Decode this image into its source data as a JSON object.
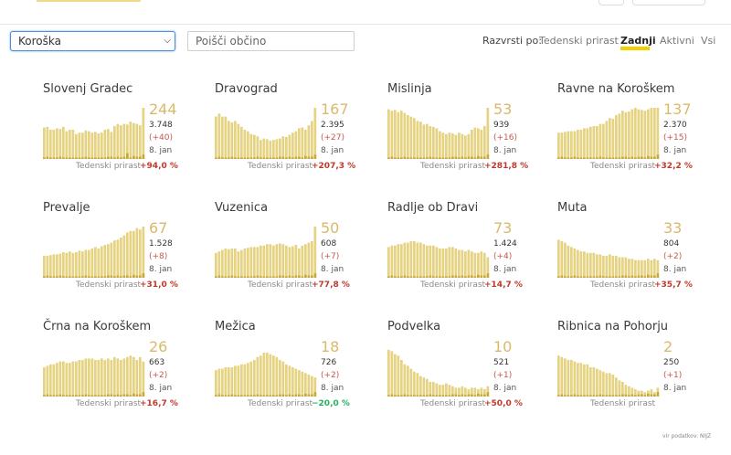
{
  "filters": {
    "region_selected": "Koroška",
    "search_placeholder": "Poišči občino"
  },
  "sort": {
    "label": "Razvrsti po:",
    "options": [
      "Tedenski prirast",
      "Zadnji",
      "Aktivni",
      "Vsi"
    ],
    "active": "Zadnji"
  },
  "colors": {
    "bar": "#e6d382",
    "bar_dark": "#c9a73a",
    "accent": "#d9b96a",
    "underline": "#f2d000",
    "increase": "#c0392b",
    "decrease": "#27ae60"
  },
  "weekly_label": "Tedenski prirast",
  "municipalities": [
    {
      "name": "Slovenj Gradec",
      "last": "244",
      "total": "3.748",
      "delta": "(+40)",
      "date": "8. jan",
      "weekly": "+94,0 %",
      "dir": "up",
      "bars": [
        43,
        44,
        40,
        40,
        42,
        41,
        44,
        38,
        40,
        40,
        34,
        36,
        36,
        39,
        38,
        36,
        37,
        35,
        36,
        40,
        41,
        37,
        45,
        48,
        46,
        48,
        47,
        51,
        49,
        48,
        46,
        70
      ],
      "dark": [
        2,
        3,
        2,
        2,
        2,
        3,
        2,
        2,
        2,
        2,
        2,
        2,
        2,
        3,
        2,
        2,
        2,
        2,
        2,
        2,
        3,
        3,
        2,
        3,
        2,
        3,
        8,
        2,
        4,
        3,
        3,
        6
      ]
    },
    {
      "name": "Dravograd",
      "last": "167",
      "total": "2.395",
      "delta": "(+27)",
      "date": "8. jan",
      "weekly": "+207,3 %",
      "dir": "up",
      "bars": [
        58,
        62,
        58,
        58,
        52,
        50,
        52,
        48,
        44,
        40,
        38,
        34,
        33,
        31,
        26,
        28,
        27,
        25,
        26,
        27,
        28,
        31,
        30,
        33,
        36,
        38,
        42,
        43,
        40,
        46,
        52,
        70
      ],
      "dark": [
        2,
        3,
        2,
        2,
        2,
        3,
        2,
        2,
        2,
        2,
        2,
        2,
        2,
        3,
        2,
        2,
        2,
        2,
        2,
        2,
        3,
        3,
        2,
        3,
        2,
        3,
        3,
        2,
        4,
        3,
        3,
        6
      ]
    },
    {
      "name": "Mislinja",
      "last": "53",
      "total": "939",
      "delta": "(+16)",
      "date": "8. jan",
      "weekly": "+281,8 %",
      "dir": "up",
      "bars": [
        68,
        66,
        67,
        64,
        66,
        63,
        60,
        58,
        56,
        52,
        51,
        47,
        48,
        45,
        44,
        42,
        38,
        36,
        34,
        36,
        35,
        33,
        36,
        34,
        32,
        34,
        40,
        43,
        42,
        40,
        45,
        70
      ],
      "dark": [
        2,
        3,
        2,
        2,
        2,
        3,
        2,
        2,
        2,
        2,
        2,
        2,
        2,
        3,
        2,
        2,
        2,
        2,
        2,
        2,
        3,
        3,
        2,
        3,
        2,
        3,
        3,
        2,
        4,
        3,
        3,
        6
      ]
    },
    {
      "name": "Ravne na Koroškem",
      "last": "137",
      "total": "2.370",
      "delta": "(+15)",
      "date": "8. jan",
      "weekly": "+32,2 %",
      "dir": "up",
      "bars": [
        36,
        36,
        37,
        38,
        38,
        38,
        40,
        40,
        42,
        42,
        44,
        45,
        45,
        48,
        48,
        52,
        56,
        55,
        60,
        62,
        66,
        64,
        65,
        68,
        70,
        68,
        67,
        66,
        68,
        70,
        70,
        70
      ],
      "dark": [
        2,
        3,
        2,
        2,
        2,
        3,
        2,
        2,
        2,
        2,
        2,
        2,
        2,
        3,
        2,
        2,
        2,
        2,
        2,
        2,
        3,
        3,
        2,
        3,
        2,
        3,
        3,
        2,
        4,
        3,
        3,
        6
      ]
    },
    {
      "name": "Prevalje",
      "last": "67",
      "total": "1.528",
      "delta": "(+8)",
      "date": "8. jan",
      "weekly": "+31,0 %",
      "dir": "up",
      "bars": [
        30,
        30,
        31,
        32,
        32,
        33,
        35,
        34,
        36,
        34,
        35,
        37,
        36,
        38,
        38,
        40,
        42,
        40,
        43,
        45,
        46,
        48,
        51,
        52,
        55,
        58,
        62,
        64,
        64,
        68,
        66,
        70
      ],
      "dark": [
        2,
        3,
        2,
        2,
        2,
        3,
        2,
        2,
        2,
        2,
        2,
        2,
        2,
        3,
        2,
        2,
        2,
        2,
        2,
        2,
        3,
        3,
        2,
        3,
        2,
        3,
        3,
        2,
        4,
        3,
        3,
        6
      ]
    },
    {
      "name": "Vuzenica",
      "last": "50",
      "total": "608",
      "delta": "(+7)",
      "date": "8. jan",
      "weekly": "+77,8 %",
      "dir": "up",
      "bars": [
        34,
        36,
        38,
        40,
        39,
        40,
        40,
        36,
        38,
        40,
        41,
        42,
        42,
        42,
        44,
        44,
        46,
        46,
        44,
        46,
        47,
        46,
        44,
        42,
        43,
        45,
        40,
        44,
        46,
        48,
        50,
        70
      ],
      "dark": [
        2,
        3,
        2,
        2,
        2,
        3,
        2,
        2,
        2,
        2,
        2,
        2,
        2,
        3,
        2,
        2,
        2,
        2,
        2,
        2,
        3,
        3,
        2,
        3,
        2,
        3,
        3,
        2,
        4,
        3,
        3,
        6
      ]
    },
    {
      "name": "Radlje ob Dravi",
      "last": "73",
      "total": "1.424",
      "delta": "(+4)",
      "date": "8. jan",
      "weekly": "+14,7 %",
      "dir": "up",
      "bars": [
        42,
        44,
        44,
        46,
        46,
        48,
        48,
        50,
        50,
        48,
        48,
        46,
        44,
        44,
        44,
        42,
        40,
        40,
        40,
        42,
        42,
        40,
        38,
        38,
        36,
        38,
        36,
        34,
        34,
        36,
        34,
        28
      ],
      "dark": [
        2,
        3,
        2,
        2,
        2,
        3,
        2,
        2,
        2,
        2,
        2,
        2,
        2,
        3,
        2,
        2,
        2,
        2,
        2,
        2,
        3,
        3,
        2,
        3,
        2,
        3,
        3,
        2,
        4,
        3,
        3,
        6
      ]
    },
    {
      "name": "Muta",
      "last": "33",
      "total": "804",
      "delta": "(+2)",
      "date": "8. jan",
      "weekly": "+35,7 %",
      "dir": "up",
      "bars": [
        52,
        50,
        48,
        44,
        42,
        40,
        38,
        36,
        36,
        34,
        34,
        34,
        32,
        32,
        30,
        30,
        32,
        30,
        30,
        28,
        28,
        28,
        26,
        26,
        24,
        24,
        24,
        24,
        26,
        24,
        26,
        24
      ],
      "dark": [
        2,
        3,
        2,
        2,
        2,
        3,
        2,
        2,
        2,
        2,
        2,
        2,
        2,
        3,
        2,
        2,
        2,
        2,
        2,
        2,
        3,
        3,
        2,
        3,
        2,
        3,
        3,
        2,
        4,
        3,
        3,
        6
      ]
    },
    {
      "name": "Črna na Koroškem",
      "last": "26",
      "total": "663",
      "delta": "(+2)",
      "date": "8. jan",
      "weekly": "+16,7 %",
      "dir": "up",
      "bars": [
        40,
        42,
        44,
        44,
        46,
        48,
        48,
        46,
        46,
        48,
        48,
        50,
        50,
        52,
        52,
        52,
        50,
        50,
        52,
        50,
        52,
        50,
        54,
        52,
        50,
        52,
        54,
        56,
        54,
        50,
        54,
        48
      ],
      "dark": [
        2,
        3,
        2,
        2,
        2,
        3,
        2,
        2,
        2,
        2,
        2,
        2,
        2,
        3,
        2,
        2,
        2,
        2,
        2,
        2,
        3,
        3,
        2,
        3,
        2,
        3,
        3,
        2,
        4,
        3,
        3,
        6
      ]
    },
    {
      "name": "Mežica",
      "last": "18",
      "total": "726",
      "delta": "(+2)",
      "date": "8. jan",
      "weekly": "−20,0 %",
      "dir": "down",
      "bars": [
        36,
        38,
        38,
        40,
        40,
        40,
        42,
        42,
        44,
        44,
        46,
        48,
        50,
        54,
        56,
        60,
        60,
        58,
        56,
        54,
        50,
        48,
        44,
        42,
        40,
        38,
        36,
        34,
        32,
        30,
        28,
        26
      ],
      "dark": [
        2,
        3,
        2,
        2,
        2,
        3,
        2,
        2,
        2,
        2,
        2,
        2,
        2,
        3,
        2,
        2,
        2,
        2,
        2,
        2,
        3,
        3,
        2,
        3,
        2,
        3,
        3,
        2,
        4,
        3,
        3,
        6
      ]
    },
    {
      "name": "Podvelka",
      "last": "10",
      "total": "521",
      "delta": "(+1)",
      "date": "8. jan",
      "weekly": "+50,0 %",
      "dir": "up",
      "bars": [
        64,
        62,
        58,
        56,
        50,
        44,
        42,
        38,
        34,
        32,
        28,
        26,
        24,
        20,
        20,
        18,
        16,
        16,
        18,
        16,
        14,
        12,
        12,
        14,
        12,
        10,
        12,
        12,
        10,
        12,
        10,
        14
      ],
      "dark": [
        2,
        3,
        2,
        2,
        2,
        3,
        2,
        2,
        2,
        2,
        2,
        2,
        2,
        3,
        2,
        2,
        2,
        2,
        2,
        2,
        3,
        3,
        2,
        3,
        2,
        3,
        3,
        2,
        4,
        3,
        3,
        6
      ]
    },
    {
      "name": "Ribnica na Pohorju",
      "last": "2",
      "total": "250",
      "delta": "(+1)",
      "date": "8. jan",
      "weekly": "",
      "dir": "up",
      "bars": [
        56,
        54,
        52,
        50,
        50,
        48,
        46,
        46,
        44,
        44,
        40,
        40,
        38,
        36,
        34,
        32,
        32,
        30,
        26,
        22,
        20,
        16,
        14,
        12,
        10,
        8,
        8,
        6,
        8,
        10,
        6,
        12
      ],
      "dark": [
        2,
        3,
        2,
        2,
        2,
        3,
        2,
        2,
        2,
        2,
        2,
        2,
        2,
        3,
        2,
        2,
        2,
        2,
        2,
        2,
        3,
        3,
        2,
        3,
        2,
        3,
        3,
        2,
        4,
        3,
        3,
        6
      ]
    }
  ],
  "source": "vir podatkov: NIJZ"
}
